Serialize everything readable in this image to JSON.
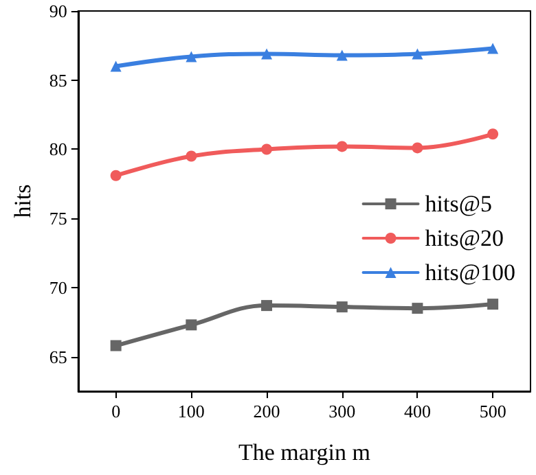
{
  "chart_data": {
    "type": "line",
    "xlabel": "The margin m",
    "ylabel": "hits",
    "x": [
      0,
      100,
      200,
      300,
      400,
      500
    ],
    "xlim": [
      -50,
      550
    ],
    "xticks": [
      0,
      100,
      200,
      300,
      400,
      500
    ],
    "ylim": [
      62.5,
      90
    ],
    "yticks": [
      65,
      70,
      75,
      80,
      85,
      90
    ],
    "grid": false,
    "legend": "right",
    "line_style": "solid",
    "series": [
      {
        "name": "hits@5",
        "color": "#666666",
        "marker": "square",
        "values": [
          65.8,
          67.3,
          68.7,
          68.6,
          68.5,
          68.8
        ]
      },
      {
        "name": "hits@20",
        "color": "#f05b5b",
        "marker": "circle",
        "values": [
          78.1,
          79.5,
          80.0,
          80.2,
          80.1,
          81.1
        ]
      },
      {
        "name": "hits@100",
        "color": "#3a7fe0",
        "marker": "triangle",
        "values": [
          86.0,
          86.7,
          86.9,
          86.8,
          86.9,
          87.3
        ]
      }
    ]
  }
}
